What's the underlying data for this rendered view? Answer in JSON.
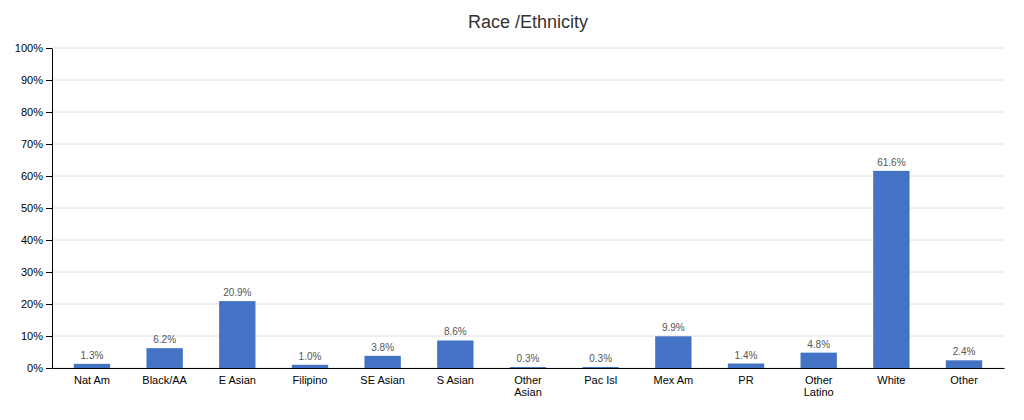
{
  "chart_data": {
    "type": "bar",
    "title": "Race /Ethnicity",
    "categories": [
      "Nat Am",
      "Black/AA",
      "E Asian",
      "Filipino",
      "SE Asian",
      "S Asian",
      "Other\nAsian",
      "Pac Isl",
      "Mex Am",
      "PR",
      "Other\nLatino",
      "White",
      "Other"
    ],
    "values": [
      1.3,
      6.2,
      20.9,
      1.0,
      3.8,
      8.6,
      0.3,
      0.3,
      9.9,
      1.4,
      4.8,
      61.6,
      2.4
    ],
    "value_labels": [
      "1.3%",
      "6.2%",
      "20.9%",
      "1.0%",
      "3.8%",
      "8.6%",
      "0.3%",
      "0.3%",
      "9.9%",
      "1.4%",
      "4.8%",
      "61.6%",
      "2.4%"
    ],
    "data_labels": true,
    "color": "#4472C4",
    "ylim": [
      0,
      100
    ],
    "yticks": [
      {
        "value": 0,
        "label": "0%"
      },
      {
        "value": 10,
        "label": "10%"
      },
      {
        "value": 20,
        "label": "20%"
      },
      {
        "value": 30,
        "label": "30%"
      },
      {
        "value": 40,
        "label": "40%"
      },
      {
        "value": 50,
        "label": "50%"
      },
      {
        "value": 60,
        "label": "60%"
      },
      {
        "value": 70,
        "label": "70%"
      },
      {
        "value": 80,
        "label": "80%"
      },
      {
        "value": 90,
        "label": "90%"
      },
      {
        "value": 100,
        "label": "100%"
      }
    ],
    "grid": true
  }
}
